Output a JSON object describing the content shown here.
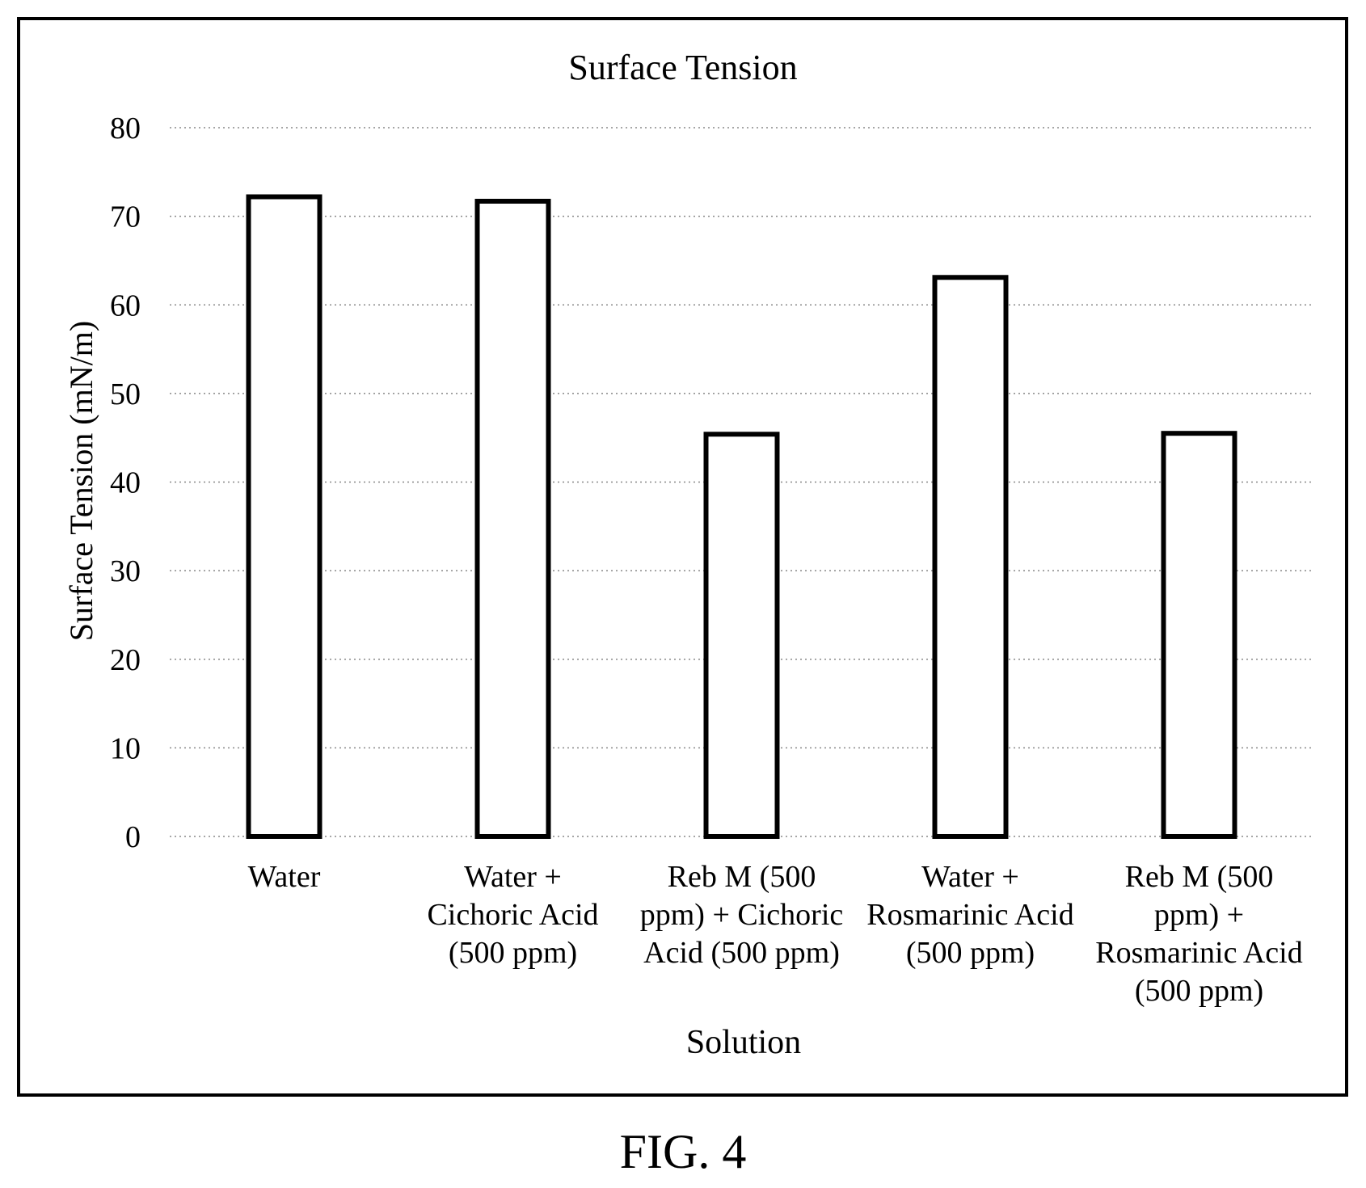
{
  "figure_label": "FIG. 4",
  "chart_data": {
    "type": "bar",
    "title": "Surface Tension",
    "xlabel": "Solution",
    "ylabel": "Surface Tension (mN/m)",
    "ylim": [
      0,
      80
    ],
    "yticks": [
      0,
      10,
      20,
      30,
      40,
      50,
      60,
      70,
      80
    ],
    "grid": true,
    "legend": "none",
    "categories": [
      "Water",
      "Water + Cichoric Acid (500 ppm)",
      "Reb M (500 ppm) + Cichoric Acid (500 ppm)",
      "Water + Rosmarinic Acid (500 ppm)",
      "Reb M (500 ppm) + Rosmarinic Acid (500 ppm)"
    ],
    "category_label_lines": [
      [
        "Water"
      ],
      [
        "Water +",
        "Cichoric Acid",
        "(500 ppm)"
      ],
      [
        "Reb M (500",
        "ppm) + Cichoric",
        "Acid (500 ppm)"
      ],
      [
        "Water +",
        "Rosmarinic Acid",
        "(500 ppm)"
      ],
      [
        "Reb M (500",
        "ppm) +",
        "Rosmarinic Acid",
        "(500 ppm)"
      ]
    ],
    "values": [
      72.2,
      71.7,
      45.4,
      63.1,
      45.5
    ],
    "colors": {
      "bar_fill": "#ffffff",
      "bar_stroke": "#000000",
      "grid": "#888888"
    }
  }
}
